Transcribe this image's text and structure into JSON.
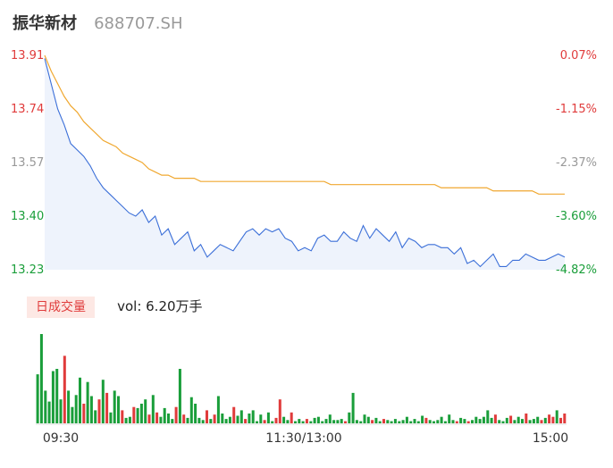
{
  "header": {
    "stock_name": "振华新材",
    "stock_code": "688707.SH"
  },
  "volume_header": {
    "badge": "日成交量",
    "text": "vol: 6.20万手"
  },
  "colors": {
    "up": "#e03b3b",
    "down": "#1a9e3a",
    "neutral": "#999999",
    "price_line": "#3b6fd8",
    "avg_line": "#f0a830",
    "area_fill": "#eef3fc"
  },
  "chart_data": [
    {
      "type": "line",
      "x_tick_labels": [
        "09:30",
        "11:30/13:00",
        "15:00"
      ],
      "y_tick_labels": [
        "13.91",
        "13.74",
        "13.57",
        "13.40",
        "13.23"
      ],
      "y_tick_values": [
        13.91,
        13.74,
        13.57,
        13.4,
        13.23
      ],
      "y_tick_colors": [
        "up",
        "up",
        "neutral",
        "down",
        "down"
      ],
      "y2_tick_labels": [
        "0.07%",
        "-1.15%",
        "-2.37%",
        "-3.60%",
        "-4.82%"
      ],
      "ylim": [
        13.23,
        13.91
      ],
      "series": [
        {
          "key": "price",
          "values": [
            13.9,
            13.82,
            13.74,
            13.69,
            13.63,
            13.61,
            13.59,
            13.56,
            13.52,
            13.49,
            13.47,
            13.45,
            13.43,
            13.41,
            13.4,
            13.42,
            13.38,
            13.4,
            13.34,
            13.36,
            13.31,
            13.33,
            13.35,
            13.29,
            13.31,
            13.27,
            13.29,
            13.31,
            13.3,
            13.29,
            13.32,
            13.35,
            13.36,
            13.34,
            13.36,
            13.35,
            13.36,
            13.33,
            13.32,
            13.29,
            13.3,
            13.29,
            13.33,
            13.34,
            13.32,
            13.32,
            13.35,
            13.33,
            13.32,
            13.37,
            13.33,
            13.36,
            13.34,
            13.32,
            13.35,
            13.3,
            13.33,
            13.32,
            13.3,
            13.31,
            13.31,
            13.3,
            13.3,
            13.28,
            13.3,
            13.25,
            13.26,
            13.24,
            13.26,
            13.28,
            13.24,
            13.24,
            13.26,
            13.26,
            13.28,
            13.27,
            13.26,
            13.26,
            13.27,
            13.28,
            13.27
          ]
        },
        {
          "key": "average",
          "values": [
            13.91,
            13.86,
            13.82,
            13.78,
            13.75,
            13.73,
            13.7,
            13.68,
            13.66,
            13.64,
            13.63,
            13.62,
            13.6,
            13.59,
            13.58,
            13.57,
            13.55,
            13.54,
            13.53,
            13.53,
            13.52,
            13.52,
            13.52,
            13.52,
            13.51,
            13.51,
            13.51,
            13.51,
            13.51,
            13.51,
            13.51,
            13.51,
            13.51,
            13.51,
            13.51,
            13.51,
            13.51,
            13.51,
            13.51,
            13.51,
            13.51,
            13.51,
            13.51,
            13.51,
            13.5,
            13.5,
            13.5,
            13.5,
            13.5,
            13.5,
            13.5,
            13.5,
            13.5,
            13.5,
            13.5,
            13.5,
            13.5,
            13.5,
            13.5,
            13.5,
            13.5,
            13.49,
            13.49,
            13.49,
            13.49,
            13.49,
            13.49,
            13.49,
            13.49,
            13.48,
            13.48,
            13.48,
            13.48,
            13.48,
            13.48,
            13.48,
            13.47,
            13.47,
            13.47,
            13.47,
            13.47
          ]
        }
      ]
    },
    {
      "type": "bar",
      "series": [
        {
          "key": "volume",
          "values": [
            45,
            82,
            30,
            20,
            48,
            50,
            22,
            62,
            30,
            15,
            26,
            42,
            18,
            38,
            25,
            12,
            22,
            40,
            28,
            10,
            30,
            25,
            12,
            5,
            6,
            15,
            14,
            18,
            22,
            8,
            26,
            10,
            6,
            14,
            9,
            4,
            15,
            50,
            8,
            5,
            24,
            18,
            5,
            3,
            12,
            4,
            8,
            25,
            9,
            4,
            6,
            15,
            7,
            12,
            4,
            9,
            12,
            2,
            8,
            3,
            10,
            2,
            5,
            22,
            6,
            3,
            10,
            2,
            4,
            2,
            4,
            2,
            5,
            6,
            2,
            4,
            8,
            3,
            3,
            4,
            2,
            10,
            28,
            3,
            2,
            8,
            6,
            3,
            5,
            2,
            4,
            3,
            2,
            4,
            2,
            3,
            6,
            2,
            4,
            2,
            7,
            5,
            3,
            2,
            3,
            6,
            2,
            8,
            3,
            2,
            5,
            4,
            2,
            3,
            6,
            4,
            6,
            12,
            5,
            8,
            3,
            2,
            5,
            7,
            3,
            6,
            4,
            9,
            3,
            4,
            6,
            3,
            5,
            8,
            6,
            12,
            5,
            9
          ],
          "colors": [
            "down",
            "down",
            "down",
            "down",
            "down",
            "down",
            "down",
            "up",
            "down",
            "down",
            "down",
            "down",
            "up",
            "down",
            "down",
            "down",
            "up",
            "down",
            "up",
            "down",
            "down",
            "down",
            "up",
            "down",
            "down",
            "up",
            "down",
            "down",
            "down",
            "up",
            "down",
            "up",
            "down",
            "down",
            "down",
            "down",
            "up",
            "down",
            "up",
            "down",
            "down",
            "down",
            "down",
            "down",
            "up",
            "down",
            "up",
            "down",
            "down",
            "down",
            "down",
            "up",
            "down",
            "down",
            "up",
            "down",
            "down",
            "down",
            "down",
            "up",
            "down",
            "down",
            "up",
            "up",
            "down",
            "down",
            "up",
            "down",
            "down",
            "down",
            "up",
            "down",
            "down",
            "down",
            "down",
            "down",
            "down",
            "down",
            "down",
            "down",
            "up",
            "down",
            "down",
            "down",
            "down",
            "down",
            "down",
            "up",
            "down",
            "down",
            "up",
            "down",
            "down",
            "down",
            "down",
            "down",
            "down",
            "down",
            "down",
            "down",
            "down",
            "up",
            "down",
            "down",
            "down",
            "down",
            "down",
            "down",
            "down",
            "up",
            "down",
            "down",
            "up",
            "down",
            "down",
            "down",
            "down",
            "down",
            "down",
            "up",
            "down",
            "down",
            "down",
            "up",
            "down",
            "down",
            "down",
            "up",
            "down",
            "down",
            "down",
            "up",
            "down",
            "up",
            "up",
            "down",
            "up",
            "up"
          ]
        }
      ]
    }
  ]
}
